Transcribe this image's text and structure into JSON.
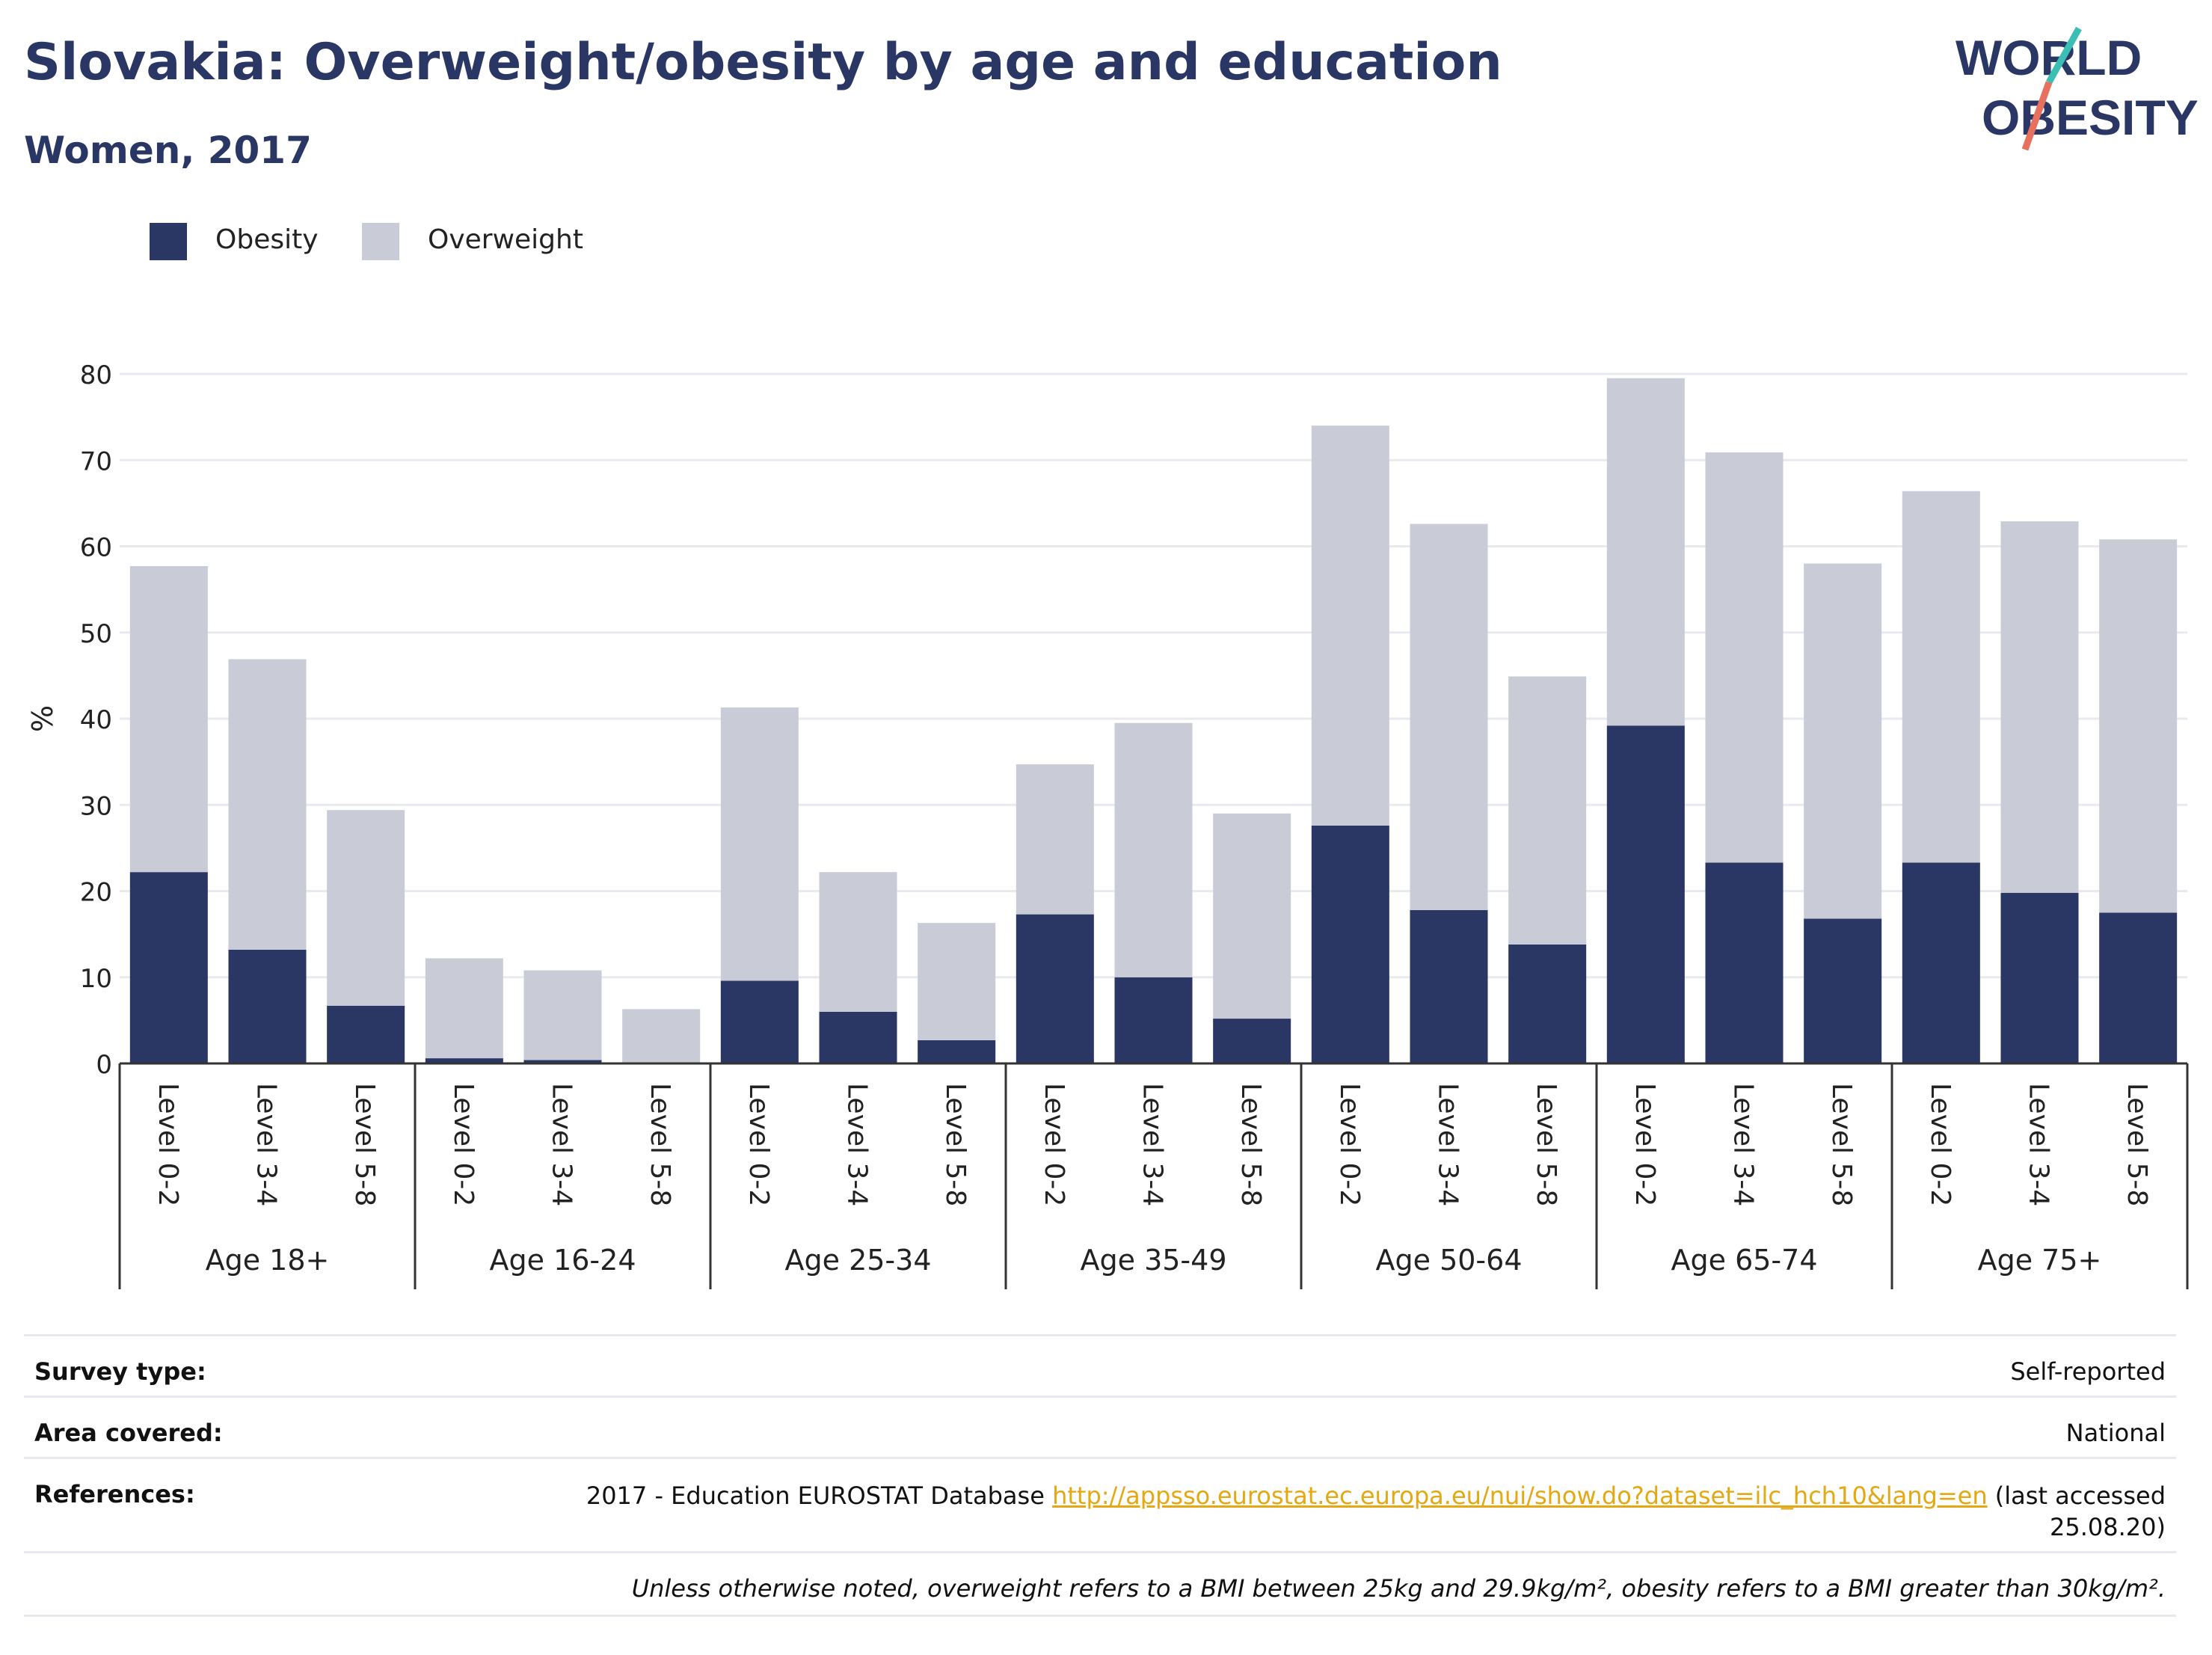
{
  "header": {
    "title": "Slovakia: Overweight/obesity by age and education",
    "subtitle": "Women, 2017",
    "logo_line1": "WORLD",
    "logo_line2": "OBESITY"
  },
  "colors": {
    "obesity": "#2a3664",
    "overweight": "#c9cbd7",
    "title": "#2a3664",
    "logo_teal": "#3bbfb4",
    "logo_coral": "#e8705f",
    "link": "#e3a812"
  },
  "legend": [
    {
      "label": "Obesity",
      "color": "#2a3664"
    },
    {
      "label": "Overweight",
      "color": "#c9cbd7"
    }
  ],
  "chart_data": {
    "type": "bar",
    "stacked": true,
    "ylabel": "%",
    "ylim": [
      0,
      80
    ],
    "yticks": [
      0,
      10,
      20,
      30,
      40,
      50,
      60,
      70,
      80
    ],
    "grid": true,
    "legend_position": "top-left",
    "groups": [
      "Age 18+",
      "Age 16-24",
      "Age 25-34",
      "Age 35-49",
      "Age 50-64",
      "Age 65-74",
      "Age 75+"
    ],
    "subcategories": [
      "Level 0-2",
      "Level 3-4",
      "Level 5-8"
    ],
    "series": [
      {
        "name": "Obesity",
        "values": [
          22.2,
          13.2,
          6.7,
          0.6,
          0.4,
          0.0,
          9.6,
          6.0,
          2.7,
          17.3,
          10.0,
          5.2,
          27.6,
          17.8,
          13.8,
          39.2,
          23.3,
          16.8,
          23.3,
          19.8,
          17.5
        ]
      },
      {
        "name": "Overweight",
        "values": [
          35.5,
          33.7,
          22.7,
          11.6,
          10.4,
          6.3,
          31.7,
          16.2,
          13.6,
          17.4,
          29.5,
          23.8,
          46.4,
          44.8,
          31.1,
          40.3,
          47.6,
          41.2,
          43.1,
          43.1,
          43.3
        ]
      }
    ]
  },
  "info": {
    "survey_type_label": "Survey type:",
    "survey_type_value": "Self-reported",
    "area_label": "Area covered:",
    "area_value": "National",
    "references_label": "References:",
    "references_prefix": "2017 - Education EUROSTAT Database ",
    "references_link": "http://appsso.eurostat.ec.europa.eu/nui/show.do?dataset=ilc_hch10&lang=en",
    "references_suffix": " (last accessed",
    "references_date": "25.08.20)",
    "note": "Unless otherwise noted, overweight refers to a BMI between 25kg and 29.9kg/m², obesity refers to a BMI greater than 30kg/m²."
  }
}
